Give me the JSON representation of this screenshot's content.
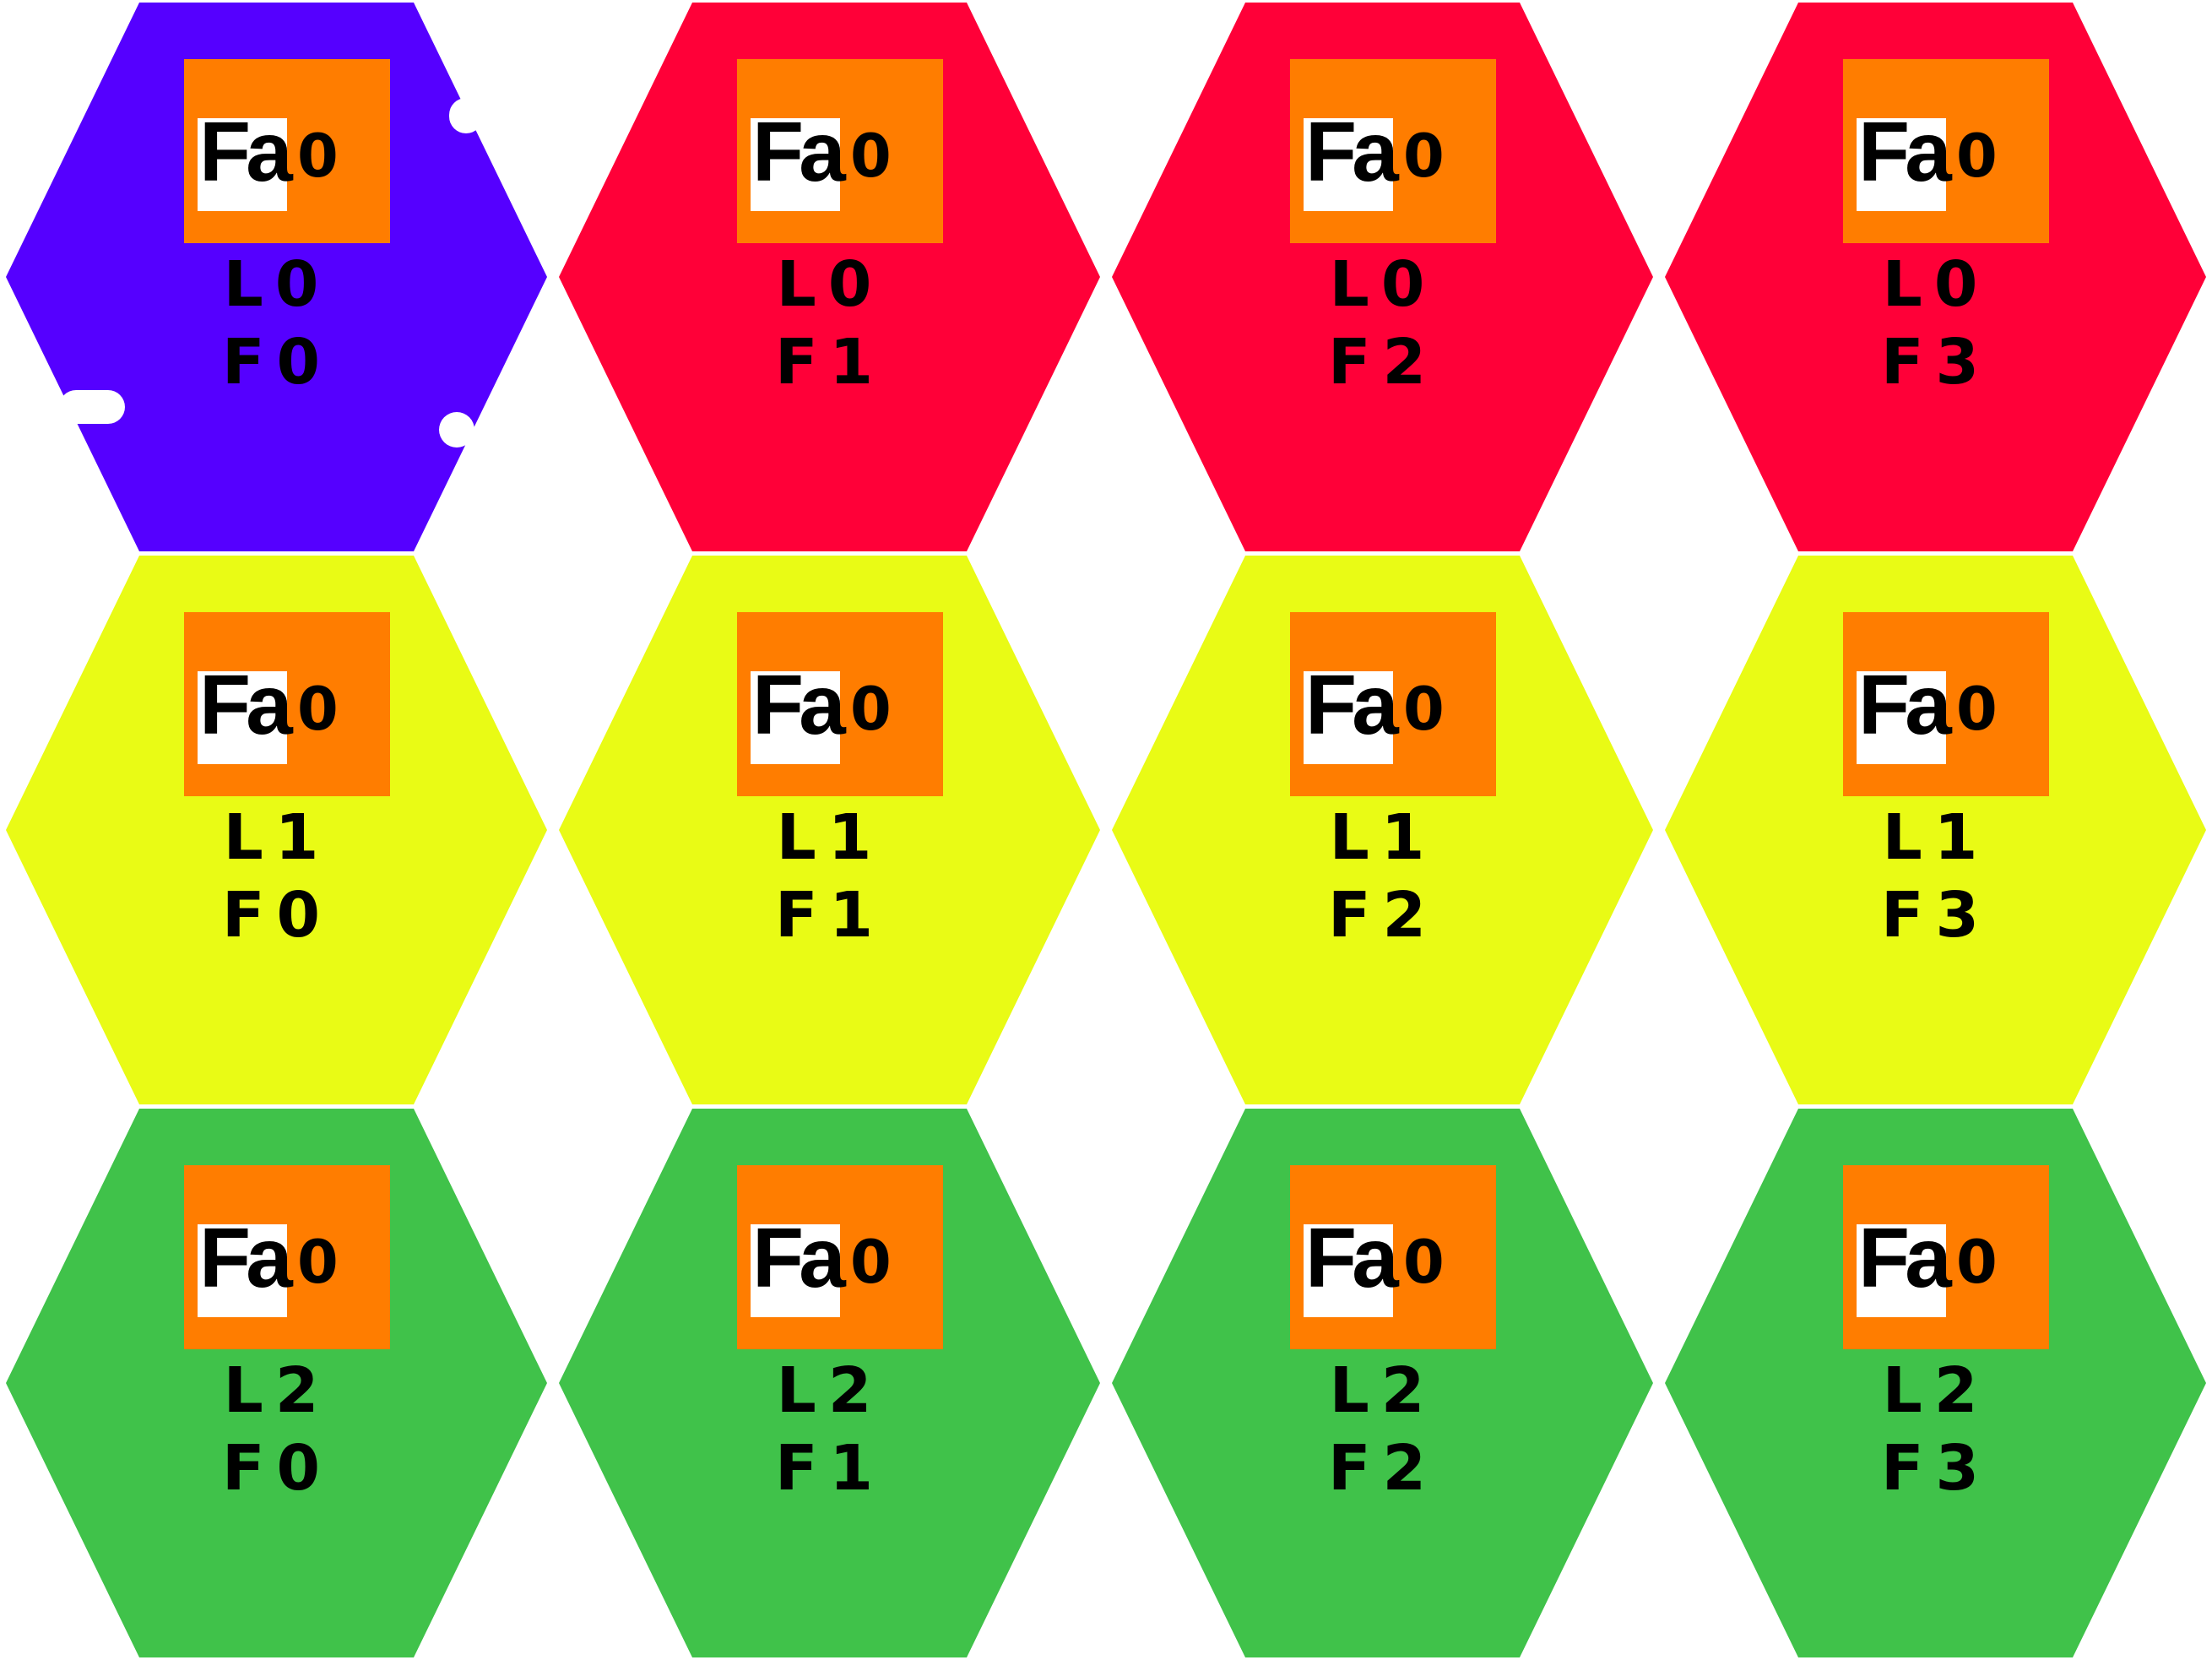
{
  "board": {
    "colors": {
      "selected": "#5500ff",
      "level_0": "#ff0038",
      "level_1": "#e9fb15",
      "level_2": "#40c24a",
      "badge": "#ff7d00",
      "badge_box": "#ffffff",
      "text": "#000000"
    },
    "badge_icon": "fa-badge-icon",
    "tiles": [
      {
        "badge": "Fa",
        "badge_num": "0",
        "level": "L0",
        "floor": "F0",
        "color": "#5500ff",
        "selected": true
      },
      {
        "badge": "Fa",
        "badge_num": "0",
        "level": "L0",
        "floor": "F1",
        "color": "#ff0038",
        "selected": false
      },
      {
        "badge": "Fa",
        "badge_num": "0",
        "level": "L0",
        "floor": "F2",
        "color": "#ff0038",
        "selected": false
      },
      {
        "badge": "Fa",
        "badge_num": "0",
        "level": "L0",
        "floor": "F3",
        "color": "#ff0038",
        "selected": false
      },
      {
        "badge": "Fa",
        "badge_num": "0",
        "level": "L1",
        "floor": "F0",
        "color": "#e9fb15",
        "selected": false
      },
      {
        "badge": "Fa",
        "badge_num": "0",
        "level": "L1",
        "floor": "F1",
        "color": "#e9fb15",
        "selected": false
      },
      {
        "badge": "Fa",
        "badge_num": "0",
        "level": "L1",
        "floor": "F2",
        "color": "#e9fb15",
        "selected": false
      },
      {
        "badge": "Fa",
        "badge_num": "0",
        "level": "L1",
        "floor": "F3",
        "color": "#e9fb15",
        "selected": false
      },
      {
        "badge": "Fa",
        "badge_num": "0",
        "level": "L2",
        "floor": "F0",
        "color": "#40c24a",
        "selected": false
      },
      {
        "badge": "Fa",
        "badge_num": "0",
        "level": "L2",
        "floor": "F1",
        "color": "#40c24a",
        "selected": false
      },
      {
        "badge": "Fa",
        "badge_num": "0",
        "level": "L2",
        "floor": "F2",
        "color": "#40c24a",
        "selected": false
      },
      {
        "badge": "Fa",
        "badge_num": "0",
        "level": "L2",
        "floor": "F3",
        "color": "#40c24a",
        "selected": false
      }
    ]
  }
}
